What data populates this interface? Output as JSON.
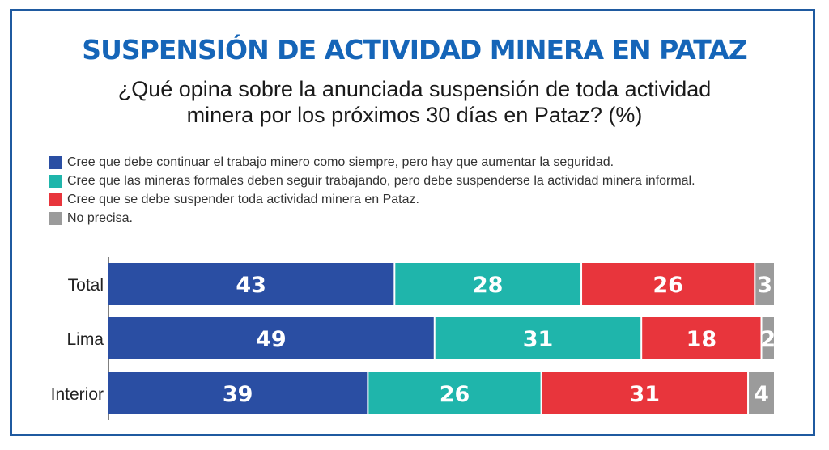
{
  "title": "SUSPENSIÓN DE ACTIVIDAD MINERA EN PATAZ",
  "subtitle_lines": [
    "¿Qué opina sobre la anunciada suspensión de toda actividad",
    "minera por los próximos 30 días en Pataz? (%)"
  ],
  "colors": {
    "blue": "#2a4ea3",
    "teal": "#1fb5ab",
    "red": "#e8353c",
    "gray": "#9b9b9b",
    "title": "#1565b8",
    "frame": "#1f5aa0"
  },
  "chart_data": {
    "type": "bar",
    "orientation": "horizontal",
    "stacked": true,
    "categories": [
      "Total",
      "Lima",
      "Interior"
    ],
    "series": [
      {
        "name": "Cree que debe continuar el trabajo minero como siempre, pero hay que aumentar la seguridad.",
        "color": "#2a4ea3",
        "values": [
          43,
          49,
          39
        ]
      },
      {
        "name": "Cree que las mineras formales deben seguir trabajando, pero debe suspenderse la actividad minera informal.",
        "color": "#1fb5ab",
        "values": [
          28,
          31,
          26
        ]
      },
      {
        "name": "Cree que se debe suspender toda actividad minera en Pataz.",
        "color": "#e8353c",
        "values": [
          26,
          18,
          31
        ]
      },
      {
        "name": "No precisa.",
        "color": "#9b9b9b",
        "values": [
          3,
          2,
          4
        ]
      }
    ],
    "legend_position": "top-left",
    "grid": false
  }
}
